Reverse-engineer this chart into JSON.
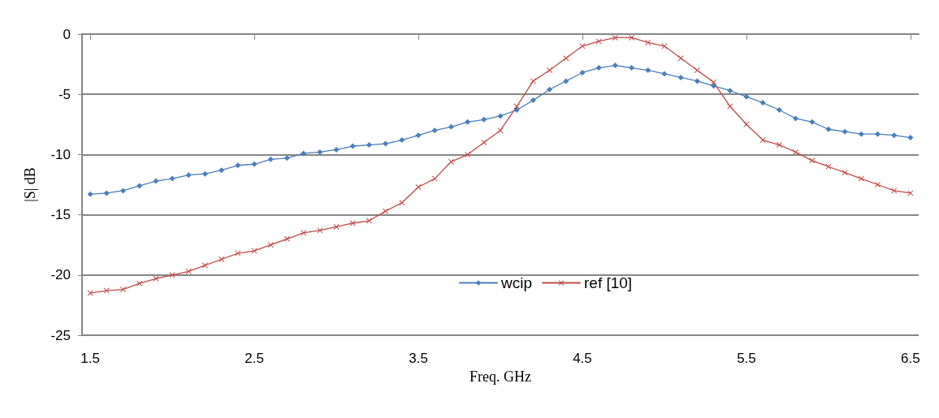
{
  "chart_data": {
    "type": "line",
    "xlabel": "Freq. GHz",
    "ylabel": "|S| dB",
    "x": [
      1.5,
      1.6,
      1.7,
      1.8,
      1.9,
      2.0,
      2.1,
      2.2,
      2.3,
      2.4,
      2.5,
      2.6,
      2.7,
      2.8,
      2.9,
      3.0,
      3.1,
      3.2,
      3.3,
      3.4,
      3.5,
      3.6,
      3.7,
      3.8,
      3.9,
      4.0,
      4.1,
      4.2,
      4.3,
      4.4,
      4.5,
      4.6,
      4.7,
      4.8,
      4.9,
      5.0,
      5.1,
      5.2,
      5.3,
      5.4,
      5.5,
      5.6,
      5.7,
      5.8,
      5.9,
      6.0,
      6.1,
      6.2,
      6.3,
      6.4,
      6.5
    ],
    "series": [
      {
        "name": "wcip",
        "color": "#4a7ebb",
        "marker": "diamond",
        "values": [
          -13.3,
          -13.2,
          -13.0,
          -12.6,
          -12.2,
          -12.0,
          -11.7,
          -11.6,
          -11.3,
          -10.9,
          -10.8,
          -10.4,
          -10.3,
          -9.9,
          -9.8,
          -9.6,
          -9.3,
          -9.2,
          -9.1,
          -8.8,
          -8.4,
          -8.0,
          -7.7,
          -7.3,
          -7.1,
          -6.8,
          -6.3,
          -5.5,
          -4.6,
          -3.9,
          -3.2,
          -2.8,
          -2.6,
          -2.8,
          -3.0,
          -3.3,
          -3.6,
          -3.9,
          -4.3,
          -4.7,
          -5.2,
          -5.7,
          -6.3,
          -7.0,
          -7.3,
          -7.9,
          -8.1,
          -8.3,
          -8.3,
          -8.4,
          -8.6
        ]
      },
      {
        "name": "ref [10]",
        "color": "#be4b48",
        "marker": "cross",
        "values": [
          -21.5,
          -21.3,
          -21.2,
          -20.7,
          -20.3,
          -20.0,
          -19.7,
          -19.2,
          -18.7,
          -18.2,
          -18.0,
          -17.5,
          -17.0,
          -16.5,
          -16.3,
          -16.0,
          -15.7,
          -15.5,
          -14.7,
          -14.0,
          -12.7,
          -12.0,
          -10.6,
          -10.0,
          -9.0,
          -8.0,
          -6.0,
          -3.9,
          -3.0,
          -2.0,
          -1.0,
          -0.6,
          -0.3,
          -0.3,
          -0.7,
          -1.0,
          -2.0,
          -3.0,
          -4.0,
          -6.0,
          -7.5,
          -8.8,
          -9.2,
          -9.8,
          -10.5,
          -11.0,
          -11.5,
          -12.0,
          -12.5,
          -13.0,
          -13.2
        ]
      }
    ],
    "xlim": [
      1.45,
      6.55
    ],
    "xticks": [
      1.5,
      2.5,
      3.5,
      4.5,
      5.5,
      6.5
    ],
    "ylim": [
      -25,
      0
    ],
    "yticks": [
      -25,
      -20,
      -15,
      -10,
      -5,
      0
    ],
    "grid": "y",
    "legend": "bottom",
    "line_style": "solid"
  }
}
